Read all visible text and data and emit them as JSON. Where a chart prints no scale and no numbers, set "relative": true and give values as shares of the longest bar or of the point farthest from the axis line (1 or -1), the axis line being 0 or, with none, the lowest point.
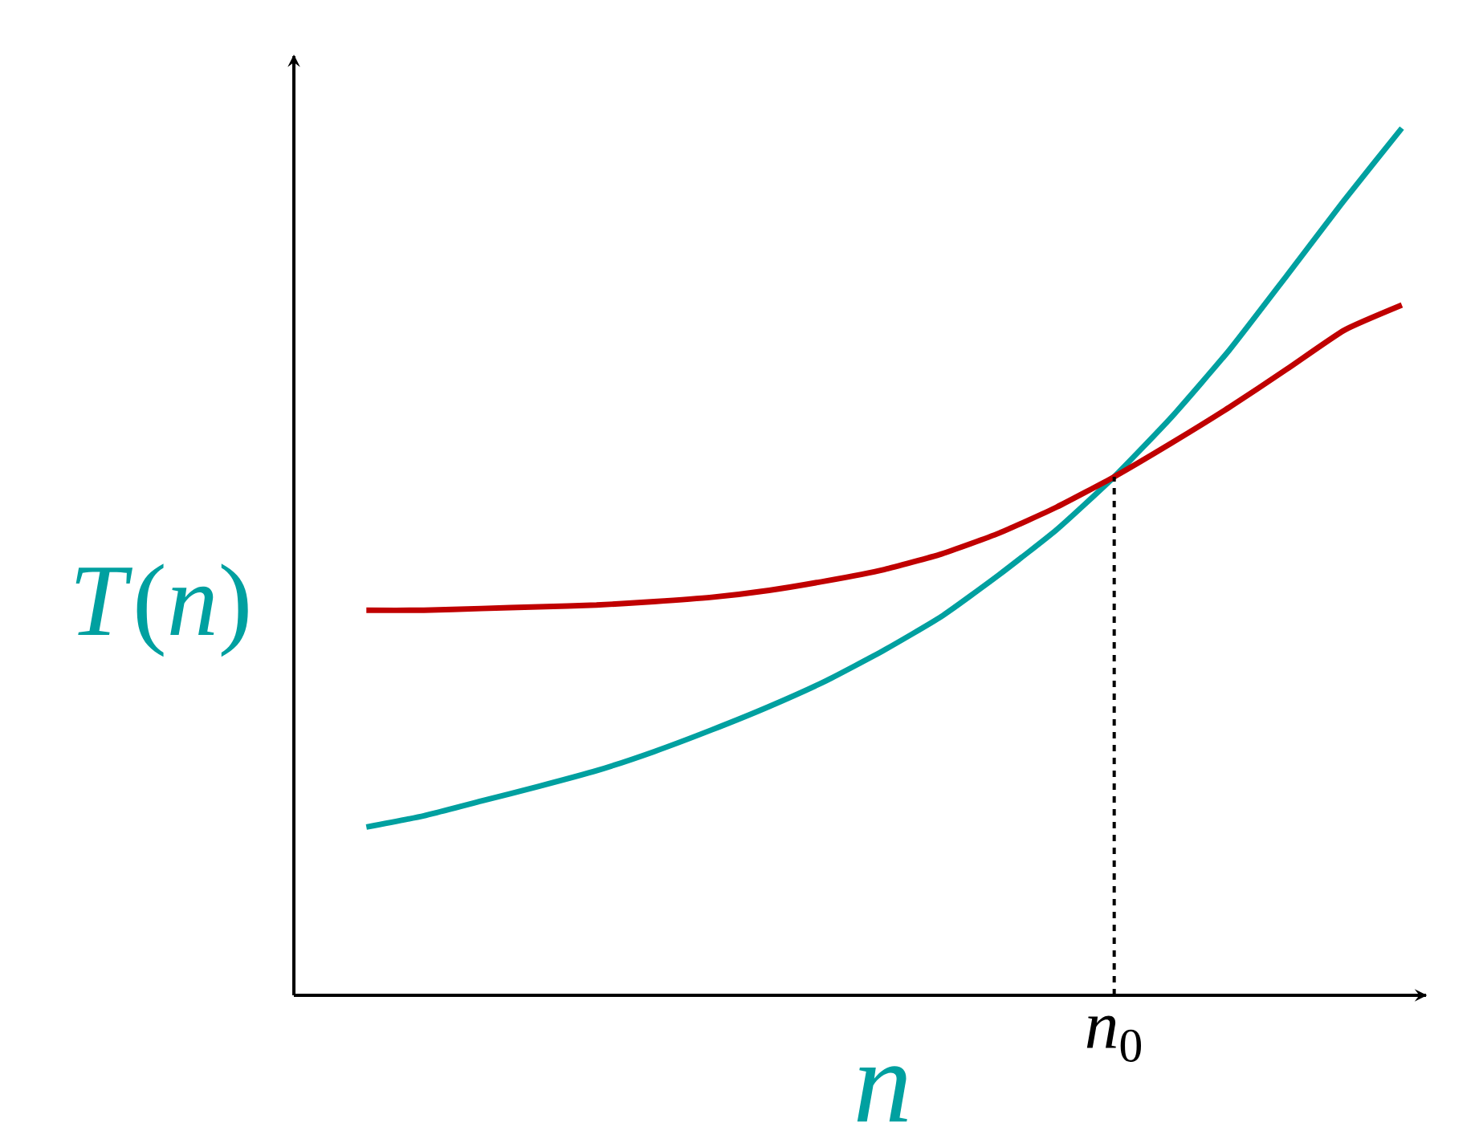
{
  "chart_data": {
    "type": "line",
    "relative": true,
    "categories": [
      null,
      null,
      null,
      null,
      null,
      null,
      null,
      null,
      null,
      null,
      null,
      null,
      null,
      null,
      null,
      null,
      null,
      null,
      null
    ],
    "series": [
      {
        "color": "#00a0a0",
        "values": [
          0.194,
          0.207,
          0.224,
          0.241,
          0.259,
          0.281,
          0.306,
          0.333,
          0.363,
          0.398,
          0.437,
          0.485,
          0.537,
          0.598,
          0.667,
          0.744,
          0.83,
          0.917,
          1
        ]
      },
      {
        "color": "#c00000",
        "values": [
          0.444,
          0.444,
          0.446,
          0.448,
          0.45,
          0.454,
          0.459,
          0.467,
          0.478,
          0.491,
          0.509,
          0.533,
          0.563,
          0.598,
          0.637,
          0.678,
          0.722,
          0.767,
          0.796
        ]
      }
    ],
    "xlabel": "*n*",
    "ylabel": "*T*(*n*)",
    "annotations": [
      "*n*$_{0}$"
    ]
  }
}
